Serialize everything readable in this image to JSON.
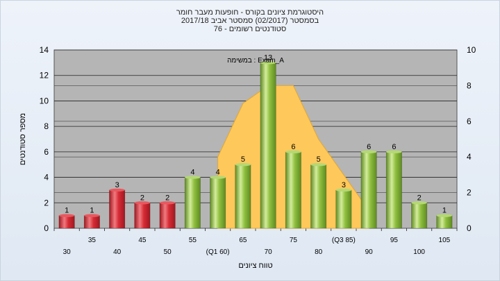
{
  "titles": {
    "line1": "היסטוגרמת ציונים בקורס - חופעות מעבר חומר",
    "line2": "בסמסטר  (02/2017)  סמסטר אביב 2017/18",
    "line3": "סטודנטים רשומים - 76"
  },
  "colors": {
    "fail": "#d62b35",
    "pass": "#8fbf3f",
    "distribution": "#ffc85a",
    "plot_bg": "#b5b5b5"
  },
  "chart_data": {
    "type": "bar",
    "annotation": "במשימה : Exam_A",
    "xlabel": "טווח ציונים",
    "ylabel": "מספר סטודנטים",
    "ylim": [
      0,
      14
    ],
    "yticks": [
      0,
      2,
      4,
      6,
      8,
      10,
      12,
      14
    ],
    "y2lim": [
      0,
      10
    ],
    "y2ticks": [
      0,
      2,
      4,
      6,
      8,
      10
    ],
    "grid": true,
    "categories": [
      "30",
      "35",
      "40",
      "45",
      "50",
      "55",
      "(Q1 60)",
      "65",
      "70",
      "75",
      "80",
      "(Q3 85)",
      "90",
      "95",
      "100",
      "105"
    ],
    "values": [
      1,
      1,
      3,
      2,
      2,
      4,
      4,
      5,
      13,
      6,
      5,
      3,
      6,
      6,
      2,
      1
    ],
    "status": [
      "fail",
      "fail",
      "fail",
      "fail",
      "fail",
      "pass",
      "pass",
      "pass",
      "pass",
      "pass",
      "pass",
      "pass",
      "pass",
      "pass",
      "pass",
      "pass"
    ],
    "distribution_band": {
      "x": [
        "(Q1 60)",
        "65",
        "70",
        "75",
        "80",
        "(Q3 85)",
        "90"
      ],
      "y2": [
        4,
        7,
        8,
        8,
        5,
        3,
        1
      ]
    }
  }
}
